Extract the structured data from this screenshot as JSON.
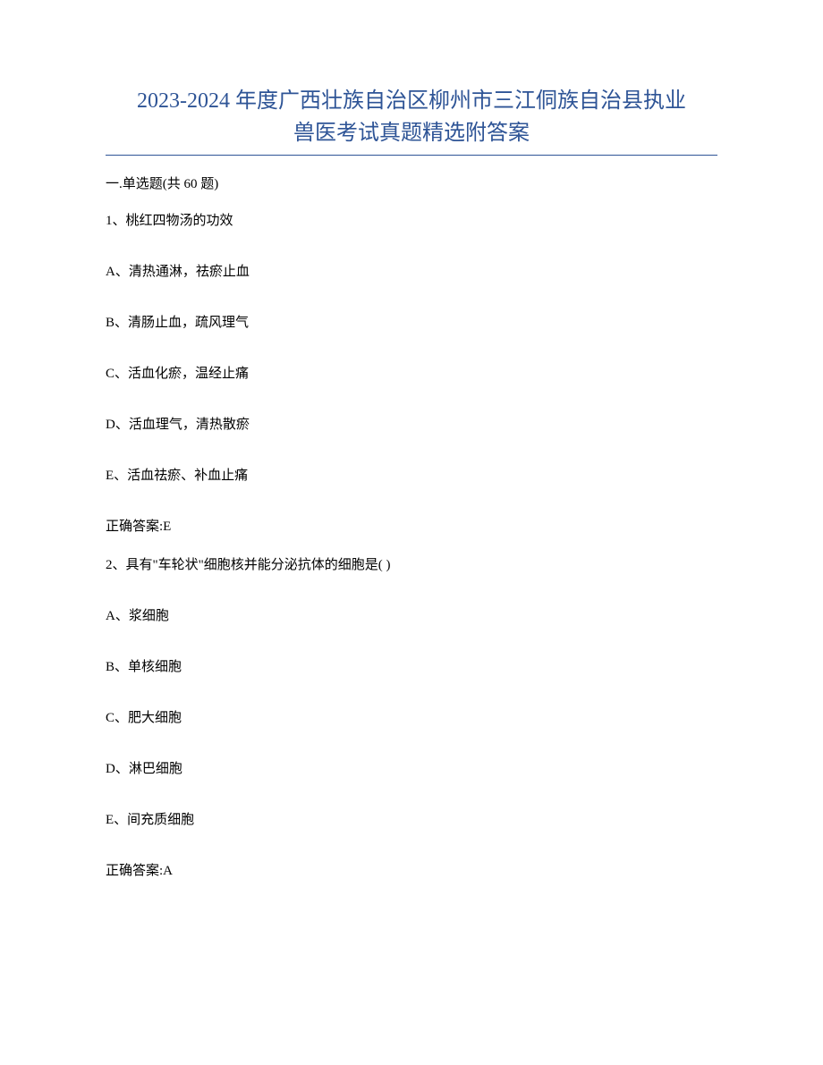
{
  "title": {
    "line1": "2023-2024 年度广西壮族自治区柳州市三江侗族自治县执业",
    "line2": "兽医考试真题精选附答案",
    "color": "#2e5496",
    "fontsize": 24
  },
  "section_header": "一.单选题(共 60 题)",
  "questions": [
    {
      "number": "1",
      "text": "1、桃红四物汤的功效",
      "options": [
        "A、清热通淋，祛瘀止血",
        "B、清肠止血，疏风理气",
        "C、活血化瘀，温经止痛",
        "D、活血理气，清热散瘀",
        "E、活血祛瘀、补血止痛"
      ],
      "answer": "正确答案:E"
    },
    {
      "number": "2",
      "text": "2、具有\"车轮状\"细胞核并能分泌抗体的细胞是( )",
      "options": [
        "A、浆细胞",
        "B、单核细胞",
        "C、肥大细胞",
        "D、淋巴细胞",
        "E、间充质细胞"
      ],
      "answer": "正确答案:A"
    }
  ],
  "colors": {
    "title": "#2e5496",
    "text": "#000000",
    "background": "#ffffff",
    "underline": "#2e5496"
  },
  "typography": {
    "title_fontsize": 24,
    "body_fontsize": 15,
    "font_family": "SimSun"
  }
}
